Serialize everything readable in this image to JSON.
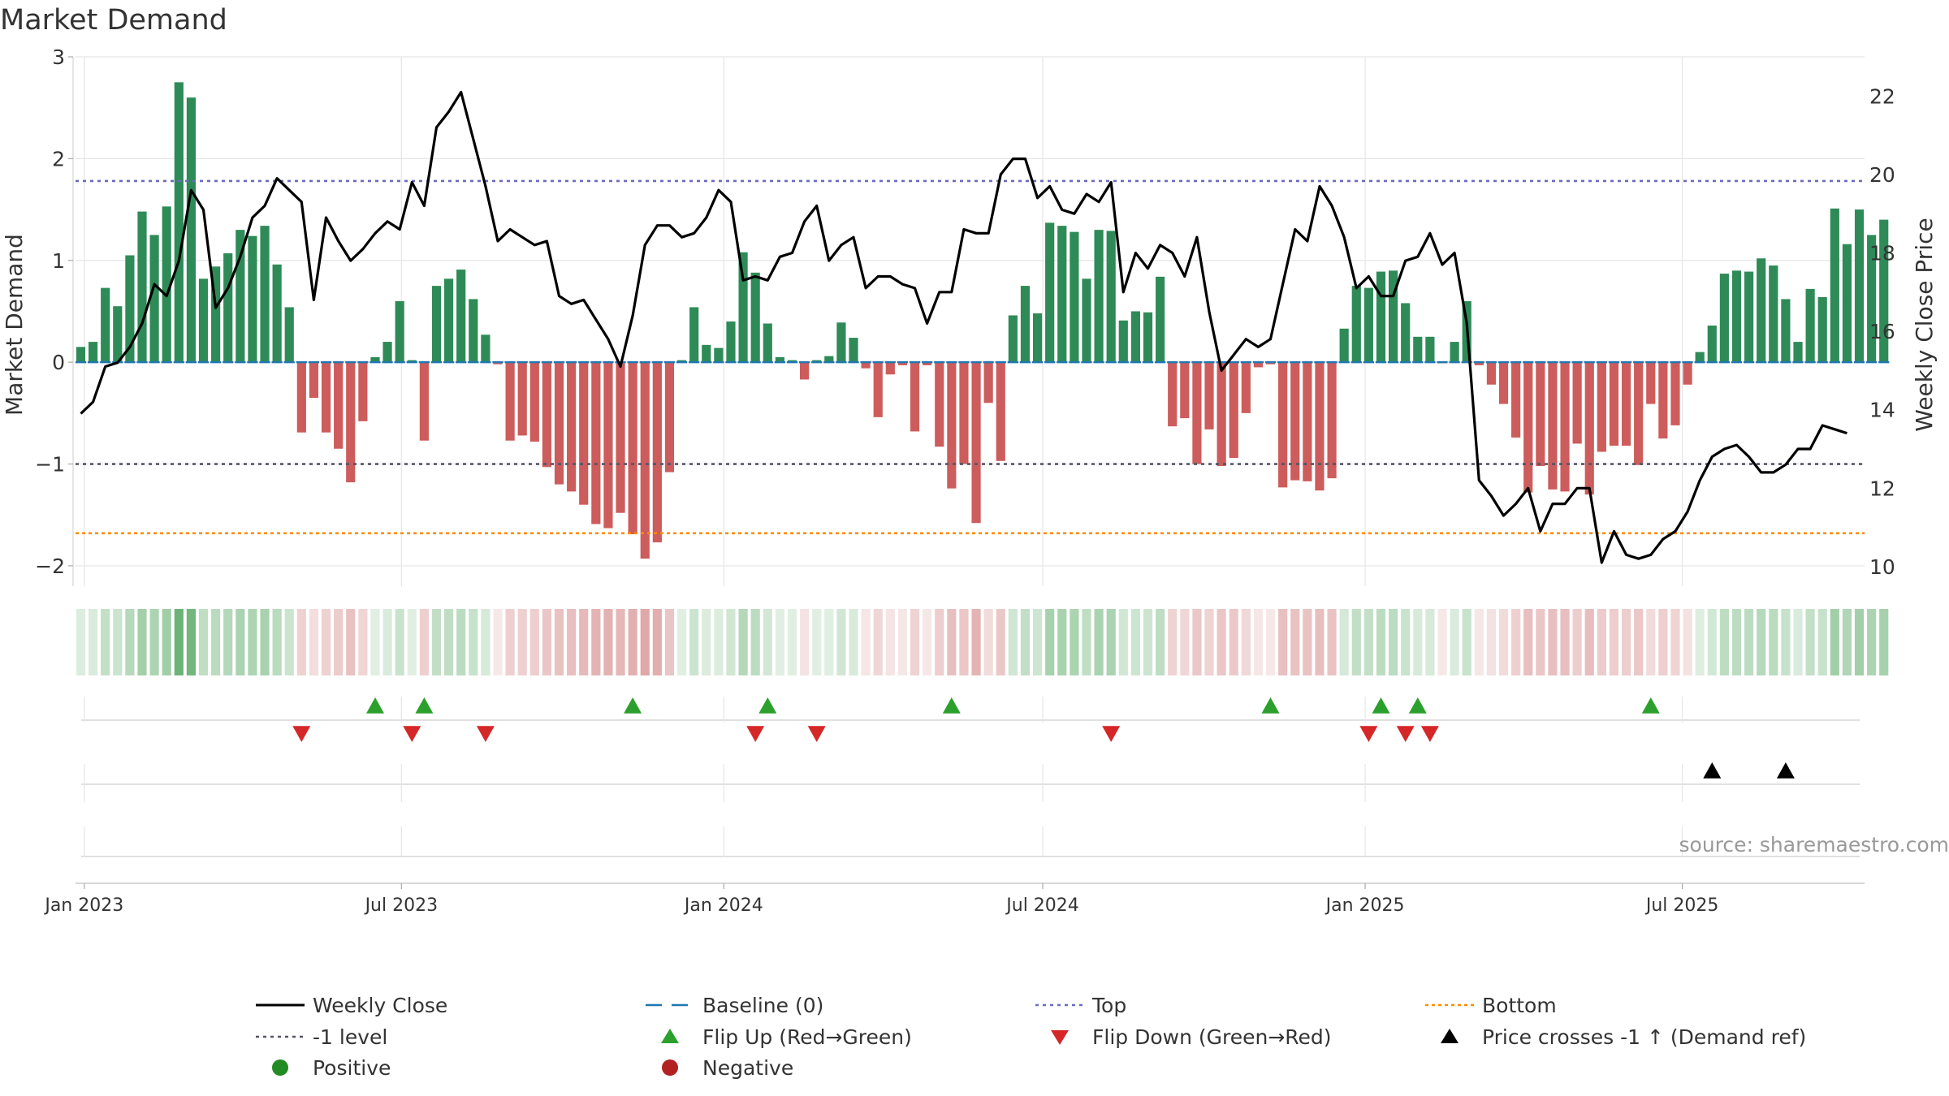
{
  "chart_data": {
    "type": "bar",
    "title": "Market Demand",
    "xlabel": "",
    "ylabel_left": "Market Demand",
    "ylabel_right": "Weekly Close Price",
    "ylim_left": [
      -2.2,
      3.0
    ],
    "ylim_right": [
      9.5,
      23.0
    ],
    "yticks_left": [
      -2,
      -1,
      0,
      1,
      2,
      3
    ],
    "yticks_left_labels": [
      "−2",
      "−1",
      "0",
      "1",
      "2",
      "3"
    ],
    "yticks_right": [
      10,
      12,
      14,
      16,
      18,
      20,
      22
    ],
    "x_start": "2022-12-30",
    "x_step_days": 7,
    "x_ticks": [
      {
        "label": "Jan 2023",
        "date": "2023-01-01"
      },
      {
        "label": "Jul 2023",
        "date": "2023-07-01"
      },
      {
        "label": "Jan 2024",
        "date": "2024-01-01"
      },
      {
        "label": "Jul 2024",
        "date": "2024-07-01"
      },
      {
        "label": "Jan 2025",
        "date": "2025-01-01"
      },
      {
        "label": "Jul 2025",
        "date": "2025-07-01"
      }
    ],
    "x_range": [
      "2022-12-27",
      "2025-10-13"
    ],
    "reference_lines": {
      "top": 1.78,
      "minus_one": -1.0,
      "bottom": -1.68,
      "baseline": 0
    },
    "demand": [
      0.15,
      0.2,
      0.73,
      0.55,
      1.05,
      1.48,
      1.25,
      1.53,
      2.75,
      2.6,
      0.82,
      0.94,
      1.07,
      1.3,
      1.24,
      1.34,
      0.96,
      0.54,
      -0.69,
      -0.35,
      -0.69,
      -0.85,
      -1.18,
      -0.58,
      0.05,
      0.2,
      0.6,
      0.02,
      -0.77,
      0.75,
      0.82,
      0.91,
      0.62,
      0.27,
      -0.02,
      -0.77,
      -0.72,
      -0.78,
      -1.03,
      -1.2,
      -1.27,
      -1.4,
      -1.59,
      -1.63,
      -1.48,
      -1.69,
      -1.93,
      -1.77,
      -1.08,
      0.02,
      0.54,
      0.17,
      0.14,
      0.4,
      1.08,
      0.88,
      0.38,
      0.05,
      0.02,
      -0.17,
      0.02,
      0.06,
      0.39,
      0.24,
      -0.06,
      -0.54,
      -0.12,
      -0.03,
      -0.68,
      -0.03,
      -0.83,
      -1.24,
      -1.0,
      -1.58,
      -0.4,
      -0.97,
      0.46,
      0.75,
      0.48,
      1.37,
      1.34,
      1.28,
      0.82,
      1.3,
      1.29,
      0.41,
      0.5,
      0.49,
      0.84,
      -0.63,
      -0.55,
      -1.0,
      -0.66,
      -1.02,
      -0.94,
      -0.5,
      -0.05,
      -0.02,
      -1.23,
      -1.16,
      -1.17,
      -1.26,
      -1.14,
      0.33,
      0.75,
      0.73,
      0.89,
      0.9,
      0.58,
      0.25,
      0.25,
      -0.01,
      0.2,
      0.6,
      -0.03,
      -0.22,
      -0.41,
      -0.74,
      -1.28,
      -1.02,
      -1.25,
      -1.27,
      -0.8,
      -1.3,
      -0.88,
      -0.82,
      -0.82,
      -1.01,
      -0.41,
      -0.75,
      -0.62,
      -0.22,
      0.1,
      0.36,
      0.87,
      0.9,
      0.89,
      1.02,
      0.95,
      0.62,
      0.2,
      0.72,
      0.64,
      1.51,
      1.16,
      1.5,
      1.25,
      1.4
    ],
    "weekly_close": [
      13.9,
      14.2,
      15.1,
      15.2,
      15.6,
      16.2,
      17.2,
      16.9,
      17.8,
      19.6,
      19.1,
      16.6,
      17.1,
      17.9,
      18.9,
      19.2,
      19.9,
      19.6,
      19.3,
      16.8,
      18.9,
      18.3,
      17.8,
      18.1,
      18.5,
      18.8,
      18.6,
      19.8,
      19.2,
      21.2,
      21.6,
      22.1,
      20.9,
      19.7,
      18.3,
      18.6,
      18.4,
      18.2,
      18.3,
      16.9,
      16.7,
      16.8,
      16.3,
      15.8,
      15.1,
      16.4,
      18.2,
      18.7,
      18.7,
      18.4,
      18.5,
      18.9,
      19.6,
      19.3,
      17.3,
      17.4,
      17.3,
      17.9,
      18.0,
      18.8,
      19.2,
      17.8,
      18.2,
      18.4,
      17.1,
      17.4,
      17.4,
      17.2,
      17.1,
      16.2,
      17.0,
      17.0,
      18.6,
      18.5,
      18.5,
      20.0,
      20.4,
      20.4,
      19.4,
      19.7,
      19.1,
      19.0,
      19.5,
      19.3,
      19.8,
      17.0,
      18.0,
      17.6,
      18.2,
      18.0,
      17.4,
      18.4,
      16.5,
      15.0,
      15.4,
      15.8,
      15.6,
      15.8,
      17.2,
      18.6,
      18.3,
      19.7,
      19.2,
      18.4,
      17.1,
      17.4,
      16.9,
      16.9,
      17.8,
      17.9,
      18.5,
      17.7,
      18.0,
      16.2,
      12.2,
      11.8,
      11.3,
      11.6,
      12.0,
      10.9,
      11.6,
      11.6,
      12.0,
      12.0,
      10.1,
      10.9,
      10.3,
      10.2,
      10.3,
      10.7,
      10.9,
      11.4,
      12.2,
      12.8,
      13.0,
      13.1,
      12.8,
      12.4,
      12.4,
      12.6,
      13.0,
      13.0,
      13.6,
      13.5,
      13.4
    ],
    "flip_up_idx": [
      24,
      28,
      45,
      56,
      71,
      97,
      106,
      109,
      128
    ],
    "flip_down_idx": [
      18,
      27,
      33,
      55,
      60,
      84,
      105,
      108,
      110
    ],
    "price_cross_idx": [
      133,
      139
    ],
    "source": "source: sharemaestro.com",
    "legend": [
      {
        "key": "weekly_close",
        "label": "Weekly Close"
      },
      {
        "key": "baseline",
        "label": "Baseline (0)"
      },
      {
        "key": "top",
        "label": "Top"
      },
      {
        "key": "bottom",
        "label": "Bottom"
      },
      {
        "key": "minus_one",
        "label": "-1 level"
      },
      {
        "key": "flip_up",
        "label": "Flip Up (Red→Green)"
      },
      {
        "key": "flip_down",
        "label": "Flip Down (Green→Red)"
      },
      {
        "key": "price_cross",
        "label": "Price crosses -1 ↑ (Demand ref)"
      },
      {
        "key": "positive",
        "label": "Positive"
      },
      {
        "key": "negative",
        "label": "Negative"
      }
    ],
    "colors": {
      "positive": "#2e8b57",
      "negative": "#cd5c5c",
      "line": "#000000",
      "baseline": "#1f77b4",
      "top": "#6b6bbf",
      "minus_one": "#555566",
      "bottom": "#ff8c00",
      "flip_up": "#2ca02c",
      "flip_down": "#d62728",
      "cross": "#000000",
      "grid": "#e6e6e6",
      "text": "#333333",
      "source": "#999999",
      "positive_dot": "#228b22",
      "negative_dot": "#b22222"
    }
  }
}
